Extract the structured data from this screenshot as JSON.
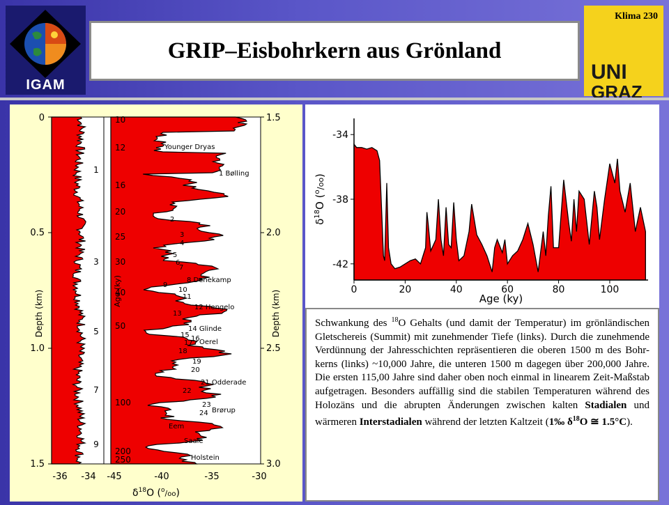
{
  "header": {
    "title": "GRIP–Eisbohrkern aus Grönland",
    "slide_number": "Klima 230",
    "logo_left_label": "IGAM",
    "logo_right_lines": [
      "UNI",
      "GRAZ"
    ]
  },
  "caption": {
    "p1": "Schwankung des ",
    "sup18a": "18",
    "p2": "O Gehalts (und damit der Temperatur) im grönländischen Gletschereis (Summit) mit zunehmender Tiefe (links). Durch die zunehmende Verdünnung der Jahresschichten repräsentieren die oberen 1500 m des Bohr-kerns (links) ~10,000 Jahre, die unteren 1500 m dagegen über 200,000 Jahre. Die ersten 115,00 Jahre sind daher oben noch einmal in linearem Zeit-Maßstab aufgetragen. Besonders auffällig sind die stabilen Temperaturen während des Holozäns und die abrupten Änderungen zwischen kalten ",
    "stadialen": "Stadialen",
    "p3": " und wärmeren ",
    "interstadialen": "Interstadialen",
    "p4": " während der letzten Kaltzeit (",
    "bold_formula_prefix": "1‰ δ",
    "sup18b": "18",
    "bold_formula_suffix": "O ≅ 1.5°C",
    "p5": ")."
  },
  "chart_data": [
    {
      "type": "area",
      "panel": "left",
      "xlabel_symbol": "δ",
      "xlabel_sup": "18",
      "xlabel_rest": "O (",
      "xlabel_unit_sup": "o",
      "xlabel_unit_sub": "oo",
      "xlabel_close": ")",
      "xticks_upper": [
        "-36",
        "-34"
      ],
      "xticks_lower": [
        "-45",
        "-40",
        "-35",
        "-30"
      ],
      "left_axis_label": "Depth (km)",
      "left_axis_ticks": [
        "0",
        "0.5",
        "1.0",
        "1.5"
      ],
      "inner_ticks": [
        "1",
        "3",
        "5",
        "7",
        "9"
      ],
      "age_axis_label": "Age (ky)",
      "age_ticks": [
        "10",
        "12",
        "16",
        "20",
        "25",
        "30",
        "40",
        "50",
        "100",
        "200",
        "250"
      ],
      "right_axis_label": "Depth (km)",
      "right_axis_ticks": [
        "1.5",
        "2.0",
        "2.5",
        "3.0"
      ],
      "annotations": [
        "Younger Dryas",
        "1 Bølling",
        "2",
        "3",
        "4",
        "5",
        "6",
        "7",
        "8 Denekamp",
        "9",
        "10",
        "11",
        "12 Hengelo",
        "13",
        "14 Glinde",
        "15",
        "16",
        "17",
        "Oerel",
        "18",
        "19",
        "20",
        "21 Odderade",
        "22",
        "23",
        "Brørup",
        "24",
        "Eem",
        "Saale",
        "Holstein"
      ],
      "colors": {
        "fill": "#ee0000",
        "line": "#000000",
        "background": "#ffffcc"
      }
    },
    {
      "type": "area",
      "panel": "right",
      "xlabel": "Age (ky)",
      "ylabel_symbol": "δ",
      "ylabel_sup": "18",
      "ylabel_rest": "O (",
      "ylabel_unit_sup": "o",
      "ylabel_unit_sub": "oo",
      "ylabel_close": ")",
      "xlim": [
        0,
        115
      ],
      "ylim": [
        -43,
        -33
      ],
      "xticks": [
        "0",
        "20",
        "40",
        "60",
        "80",
        "100"
      ],
      "yticks": [
        "-34",
        "-38",
        "-42"
      ],
      "x": [
        0,
        1,
        3,
        5,
        7,
        9,
        10,
        11,
        11.5,
        12,
        12.8,
        13.5,
        14.5,
        16,
        18,
        20,
        22,
        24,
        26,
        28,
        28.5,
        29,
        30,
        32,
        33,
        34,
        35,
        36,
        37,
        38,
        39,
        40,
        41,
        43,
        45,
        46,
        48,
        50,
        52,
        54,
        55,
        56,
        58,
        59,
        60,
        62,
        64,
        66,
        68,
        70,
        72,
        74,
        75,
        76,
        77,
        78,
        80,
        82,
        84,
        85,
        86,
        87,
        88,
        90,
        92,
        94,
        95,
        96,
        98,
        100,
        102,
        103,
        104,
        106,
        108,
        110,
        112,
        114
      ],
      "values": [
        -34.6,
        -34.8,
        -34.8,
        -34.9,
        -34.8,
        -35.0,
        -35.6,
        -39.5,
        -41.5,
        -41.8,
        -37.0,
        -41.0,
        -42.0,
        -42.3,
        -42.2,
        -42.0,
        -41.8,
        -41.7,
        -42.0,
        -41.0,
        -38.8,
        -39.5,
        -41.2,
        -40.5,
        -38.0,
        -40.5,
        -41.5,
        -38.5,
        -40.8,
        -41.0,
        -38.2,
        -40.5,
        -41.8,
        -41.5,
        -40.0,
        -38.3,
        -40.2,
        -40.8,
        -41.5,
        -42.5,
        -41.0,
        -40.5,
        -41.3,
        -40.5,
        -42.0,
        -41.5,
        -41.2,
        -40.5,
        -39.5,
        -40.8,
        -42.5,
        -40.0,
        -41.5,
        -39.0,
        -37.2,
        -41.0,
        -41.0,
        -36.8,
        -39.5,
        -40.6,
        -38.0,
        -40.0,
        -37.5,
        -38.0,
        -40.8,
        -37.5,
        -38.5,
        -40.5,
        -38.0,
        -35.8,
        -37.0,
        -35.5,
        -37.5,
        -38.8,
        -37.0,
        -40.0,
        -38.5,
        -40.0
      ],
      "colors": {
        "fill": "#ee0000",
        "line": "#000000"
      }
    }
  ]
}
